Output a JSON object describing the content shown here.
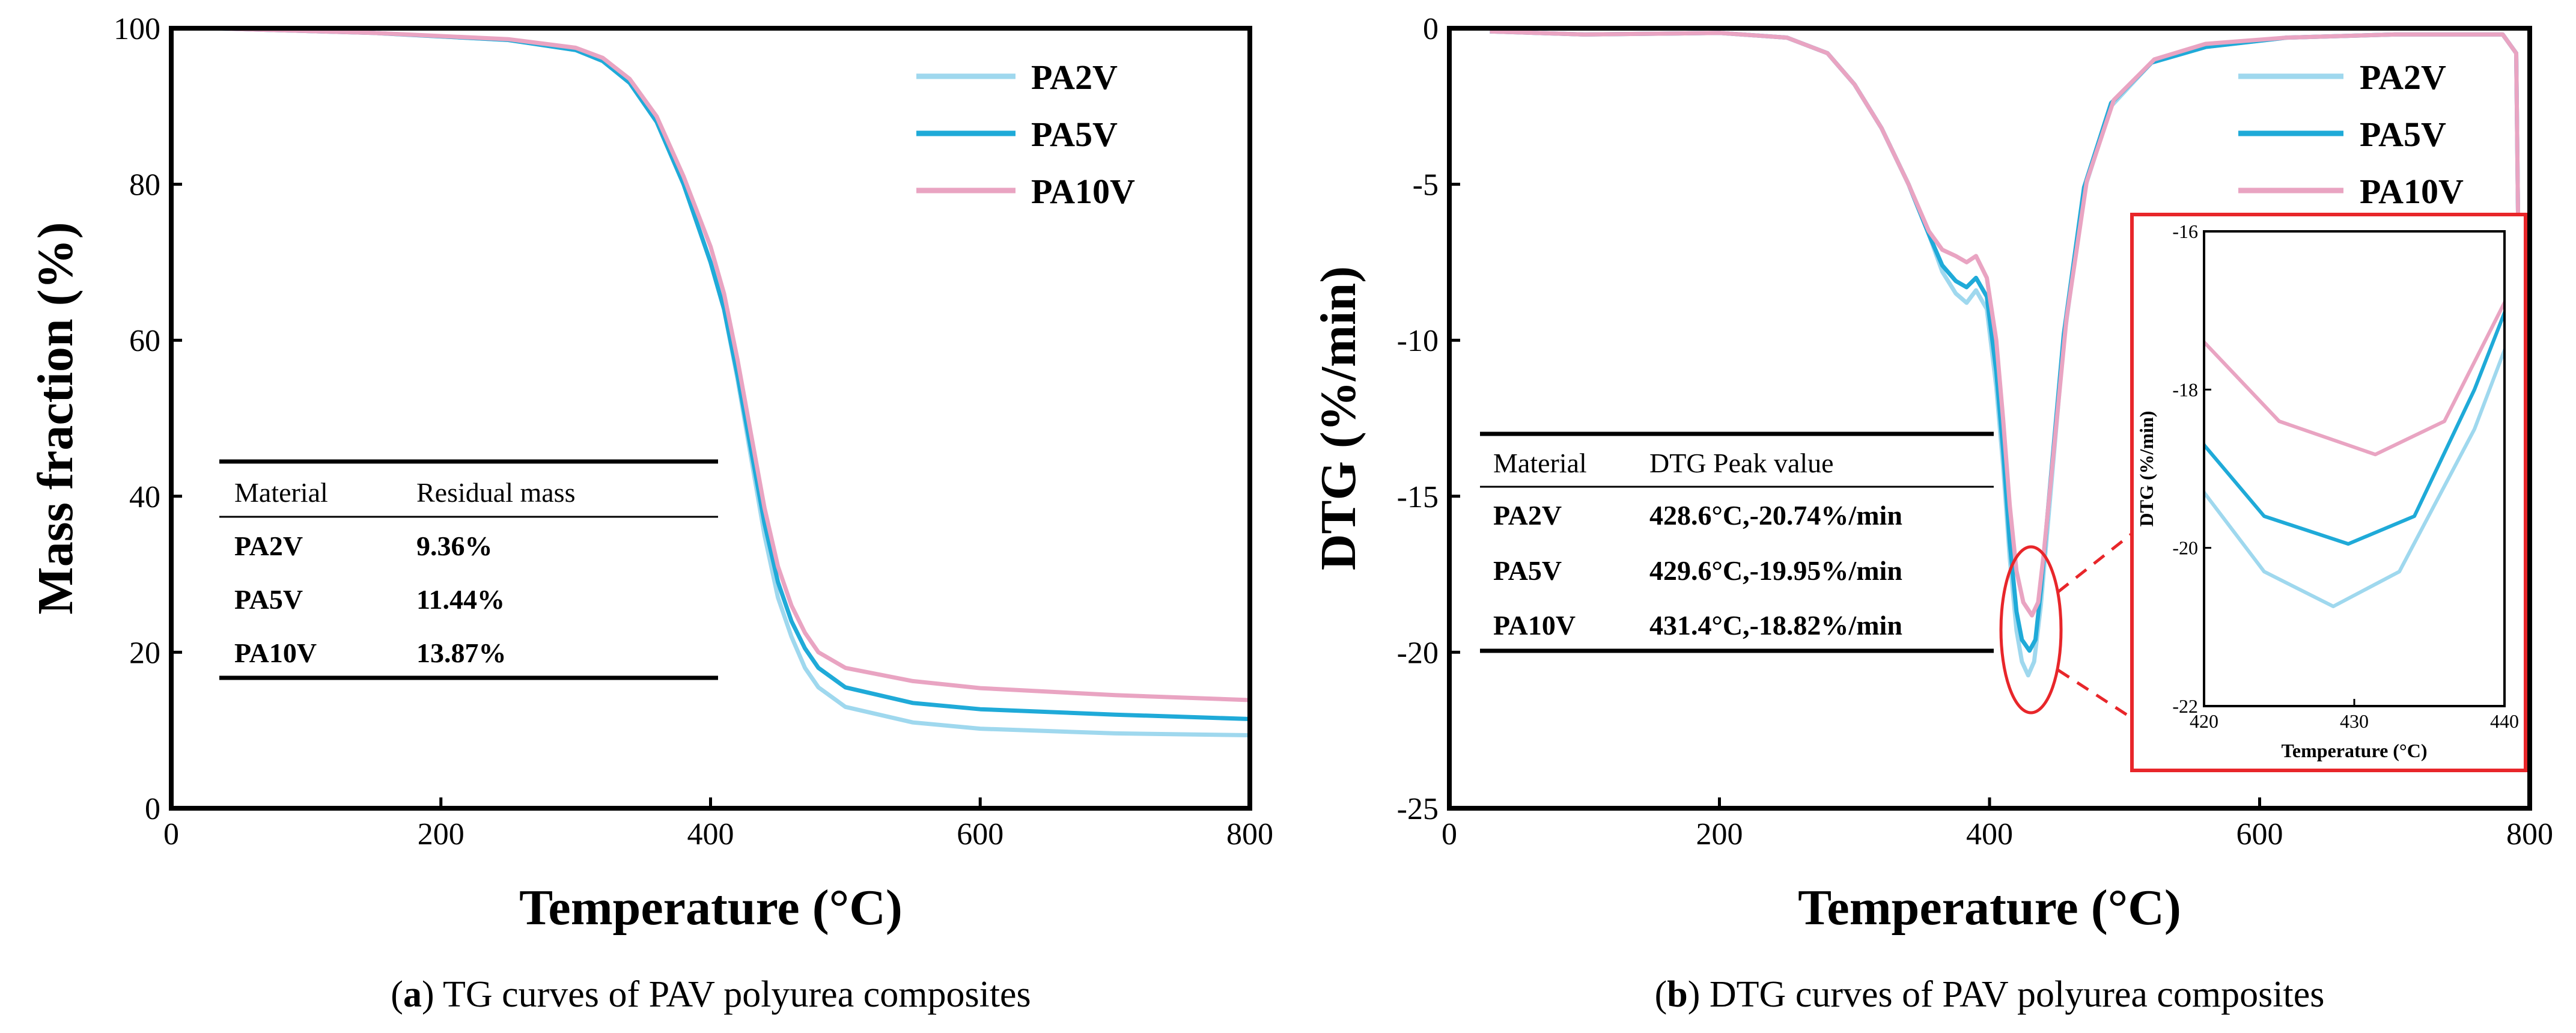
{
  "colors": {
    "PA2V": "#9fd8ee",
    "PA5V": "#1faad8",
    "PA10V": "#e9a4c2",
    "highlight": "#e8262a",
    "axis": "#000000"
  },
  "chart_data": [
    {
      "type": "line",
      "panel": "a",
      "xlabel": "Temperature (°C)",
      "ylabel": "Mass fraction (%)",
      "xlim": [
        0,
        800
      ],
      "ylim": [
        0,
        100
      ],
      "xticks": [
        "0",
        "200",
        "400",
        "600",
        "800"
      ],
      "yticks": [
        "0",
        "20",
        "40",
        "60",
        "80",
        "100"
      ],
      "legend": [
        "PA2V",
        "PA5V",
        "PA10V"
      ],
      "legend_position": "top-right",
      "grid": false,
      "series": [
        {
          "name": "PA2V",
          "x": [
            30,
            150,
            250,
            300,
            320,
            340,
            360,
            380,
            400,
            410,
            420,
            430,
            440,
            450,
            460,
            470,
            480,
            500,
            550,
            600,
            700,
            800
          ],
          "y": [
            100,
            99.4,
            98.5,
            97.2,
            95.8,
            93,
            88,
            80,
            70,
            64,
            55,
            45,
            35,
            27,
            22,
            18,
            15.5,
            13,
            11,
            10.2,
            9.6,
            9.36
          ]
        },
        {
          "name": "PA5V",
          "x": [
            30,
            150,
            250,
            300,
            320,
            340,
            360,
            380,
            400,
            410,
            420,
            430,
            440,
            450,
            460,
            470,
            480,
            500,
            550,
            600,
            700,
            800
          ],
          "y": [
            100,
            99.4,
            98.5,
            97.2,
            95.8,
            93,
            88,
            80,
            70,
            64,
            55.5,
            46,
            36.5,
            29,
            24,
            20.5,
            18,
            15.5,
            13.5,
            12.7,
            12,
            11.44
          ]
        },
        {
          "name": "PA10V",
          "x": [
            30,
            150,
            250,
            300,
            320,
            340,
            360,
            380,
            400,
            410,
            420,
            430,
            440,
            450,
            460,
            470,
            480,
            500,
            550,
            600,
            700,
            800
          ],
          "y": [
            100,
            99.4,
            98.6,
            97.5,
            96.2,
            93.5,
            88.7,
            81,
            72,
            66,
            57.5,
            48,
            38.5,
            31,
            26,
            22.5,
            20,
            18,
            16.3,
            15.4,
            14.5,
            13.87
          ]
        }
      ],
      "table": {
        "headers": [
          "Material",
          "Residual mass"
        ],
        "rows": [
          [
            "PA2V",
            "9.36%"
          ],
          [
            "PA5V",
            "11.44%"
          ],
          [
            "PA10V",
            "13.87%"
          ]
        ]
      },
      "caption_label": "a",
      "caption_text": ") TG curves of PAV polyurea composites"
    },
    {
      "type": "line",
      "panel": "b",
      "xlabel": "Temperature (°C)",
      "ylabel": "DTG (%/min)",
      "xlim": [
        0,
        800
      ],
      "ylim": [
        -25,
        0
      ],
      "xticks": [
        "0",
        "200",
        "400",
        "600",
        "800"
      ],
      "yticks": [
        "0",
        "-5",
        "-10",
        "-15",
        "-20",
        "-25"
      ],
      "legend": [
        "PA2V",
        "PA5V",
        "PA10V"
      ],
      "legend_position": "top-right",
      "grid": false,
      "series": [
        {
          "name": "PA2V",
          "x": [
            30,
            100,
            200,
            250,
            280,
            300,
            320,
            340,
            355,
            365,
            375,
            383,
            390,
            398,
            405,
            410,
            415,
            420,
            424,
            428.6,
            433,
            438,
            445,
            455,
            470,
            490,
            520,
            560,
            620,
            700,
            780,
            790,
            795,
            800
          ],
          "y": [
            -0.1,
            -0.2,
            -0.15,
            -0.3,
            -0.8,
            -1.8,
            -3.2,
            -5,
            -6.6,
            -7.8,
            -8.5,
            -8.8,
            -8.4,
            -9,
            -11.5,
            -14,
            -17,
            -19.3,
            -20.3,
            -20.74,
            -20.3,
            -18.5,
            -15,
            -10,
            -5.2,
            -2.5,
            -1.1,
            -0.6,
            -0.3,
            -0.2,
            -0.2,
            -0.8,
            -20,
            -20
          ]
        },
        {
          "name": "PA5V",
          "x": [
            30,
            100,
            200,
            250,
            280,
            300,
            320,
            340,
            355,
            365,
            375,
            383,
            390,
            398,
            405,
            410,
            415,
            420,
            424,
            429.6,
            434,
            438,
            445,
            455,
            470,
            490,
            520,
            560,
            620,
            700,
            780,
            790,
            795,
            800
          ],
          "y": [
            -0.1,
            -0.2,
            -0.15,
            -0.3,
            -0.8,
            -1.8,
            -3.2,
            -5,
            -6.6,
            -7.6,
            -8.1,
            -8.3,
            -8,
            -8.6,
            -11,
            -13.5,
            -16.5,
            -18.7,
            -19.6,
            -19.95,
            -19.6,
            -18,
            -14.6,
            -9.8,
            -5.1,
            -2.4,
            -1.1,
            -0.6,
            -0.3,
            -0.2,
            -0.2,
            -0.8,
            -20,
            -20
          ]
        },
        {
          "name": "PA10V",
          "x": [
            30,
            100,
            200,
            250,
            280,
            300,
            320,
            340,
            355,
            365,
            375,
            383,
            390,
            398,
            405,
            410,
            415,
            420,
            425,
            431.4,
            436,
            440,
            447,
            457,
            472,
            492,
            522,
            560,
            620,
            700,
            780,
            790,
            795,
            800
          ],
          "y": [
            -0.1,
            -0.2,
            -0.15,
            -0.3,
            -0.8,
            -1.8,
            -3.2,
            -5,
            -6.5,
            -7.1,
            -7.3,
            -7.5,
            -7.3,
            -8,
            -10,
            -12.5,
            -15.3,
            -17.4,
            -18.4,
            -18.82,
            -18.4,
            -16.9,
            -13.8,
            -9.3,
            -4.9,
            -2.3,
            -1,
            -0.5,
            -0.3,
            -0.2,
            -0.2,
            -0.8,
            -20,
            -20
          ]
        }
      ],
      "table": {
        "headers": [
          "Material",
          "DTG Peak value"
        ],
        "rows": [
          [
            "PA2V",
            "428.6°C,-20.74%/min"
          ],
          [
            "PA5V",
            "429.6°C,-19.95%/min"
          ],
          [
            "PA10V",
            "431.4°C,-18.82%/min"
          ]
        ]
      },
      "inset": {
        "xlabel": "Temperature (°C)",
        "ylabel": "DTG (%/min)",
        "xlim": [
          420,
          440
        ],
        "ylim": [
          -22,
          -16
        ],
        "xticks": [
          "420",
          "430",
          "440"
        ],
        "yticks": [
          "-16",
          "-18",
          "-20",
          "-22"
        ]
      },
      "caption_label": "b",
      "caption_text": ") DTG curves of PAV polyurea composites"
    }
  ]
}
